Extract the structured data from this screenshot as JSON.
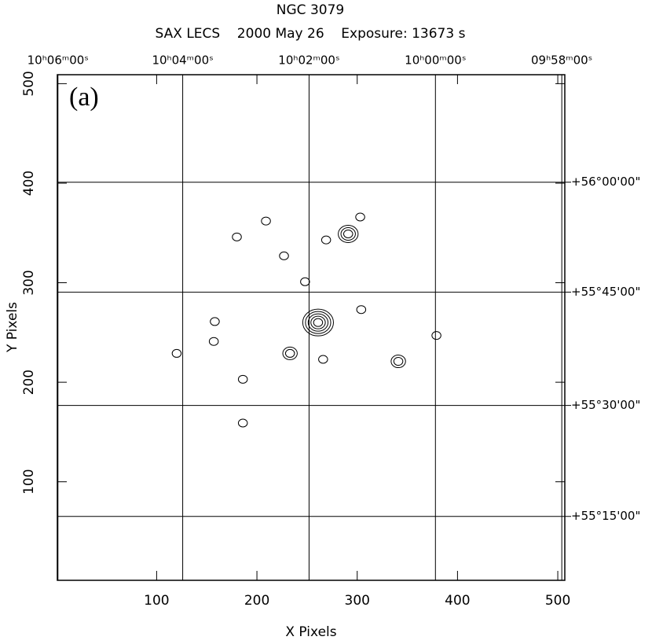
{
  "chart_data": {
    "type": "contour",
    "title": "NGC 3079",
    "subtitle": "SAX LECS    2000 May 26    Exposure: 13673 s",
    "panel_label": "(a)",
    "xlabel": "X Pixels",
    "ylabel": "Y Pixels",
    "xlim": [
      1,
      507
    ],
    "ylim": [
      1,
      509
    ],
    "xticks": [
      100,
      200,
      300,
      400,
      500
    ],
    "yticks": [
      100,
      200,
      300,
      400,
      500
    ],
    "x2ticks": [
      {
        "value": 1.6,
        "label": "10ʰ06ᵐ00ˢ"
      },
      {
        "value": 126,
        "label": "10ʰ04ᵐ00ˢ"
      },
      {
        "value": 252,
        "label": "10ʰ02ᵐ00ˢ"
      },
      {
        "value": 378,
        "label": "10ʰ00ᵐ00ˢ"
      },
      {
        "value": 504,
        "label": "09ʰ58ᵐ00ˢ"
      }
    ],
    "y2ticks": [
      {
        "value": 401,
        "label": "+56°00'00\""
      },
      {
        "value": 290.5,
        "label": "+55°45'00\""
      },
      {
        "value": 176.7,
        "label": "+55°30'00\""
      },
      {
        "value": 65.2,
        "label": "+55°15'00\""
      }
    ],
    "grid": true,
    "sources": {
      "x": [
        261,
        291,
        303,
        233,
        341,
        180,
        209,
        227,
        248,
        269,
        158,
        157,
        120,
        186,
        186,
        304,
        266,
        379
      ],
      "y": [
        260,
        349,
        366,
        229,
        221,
        346,
        362,
        327,
        301,
        343,
        261,
        241,
        229,
        203,
        159,
        273,
        223,
        247
      ],
      "levels": [
        5,
        3,
        1,
        2,
        2,
        1,
        1,
        1,
        1,
        1,
        1,
        1,
        1,
        1,
        1,
        1,
        1,
        1
      ]
    }
  }
}
